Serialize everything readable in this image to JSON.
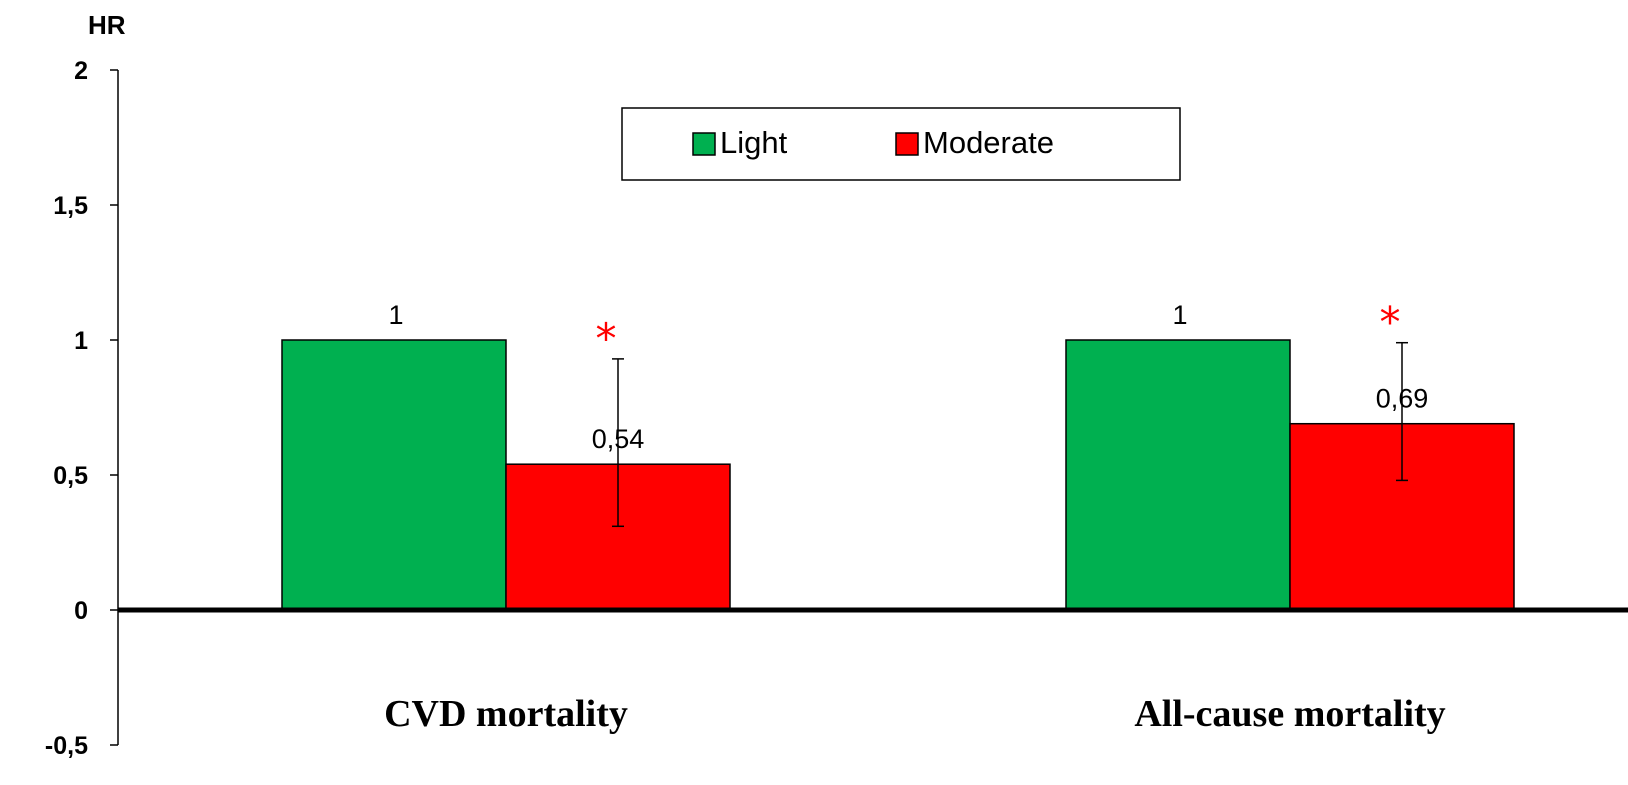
{
  "chart_data": {
    "type": "bar",
    "ylabel": "HR",
    "ylim": [
      -0.5,
      2
    ],
    "yticks": [
      {
        "value": -0.5,
        "label": "-0,5"
      },
      {
        "value": 0,
        "label": "0"
      },
      {
        "value": 0.5,
        "label": "0,5"
      },
      {
        "value": 1,
        "label": "1"
      },
      {
        "value": 1.5,
        "label": "1,5"
      },
      {
        "value": 2,
        "label": "2"
      }
    ],
    "categories": [
      "CVD mortality",
      "All-cause mortality"
    ],
    "series": [
      {
        "name": "Light",
        "color": "#00b050",
        "values": [
          1,
          1
        ],
        "labels": [
          "1",
          "1"
        ]
      },
      {
        "name": "Moderate",
        "color": "#ff0000",
        "values": [
          0.54,
          0.69
        ],
        "labels": [
          "0,54",
          "0,69"
        ],
        "error_low": [
          0.31,
          0.48
        ],
        "error_high": [
          0.93,
          0.99
        ],
        "significance": [
          "*",
          "*"
        ]
      }
    ],
    "legend": {
      "position": "top-center"
    },
    "grid": false
  }
}
